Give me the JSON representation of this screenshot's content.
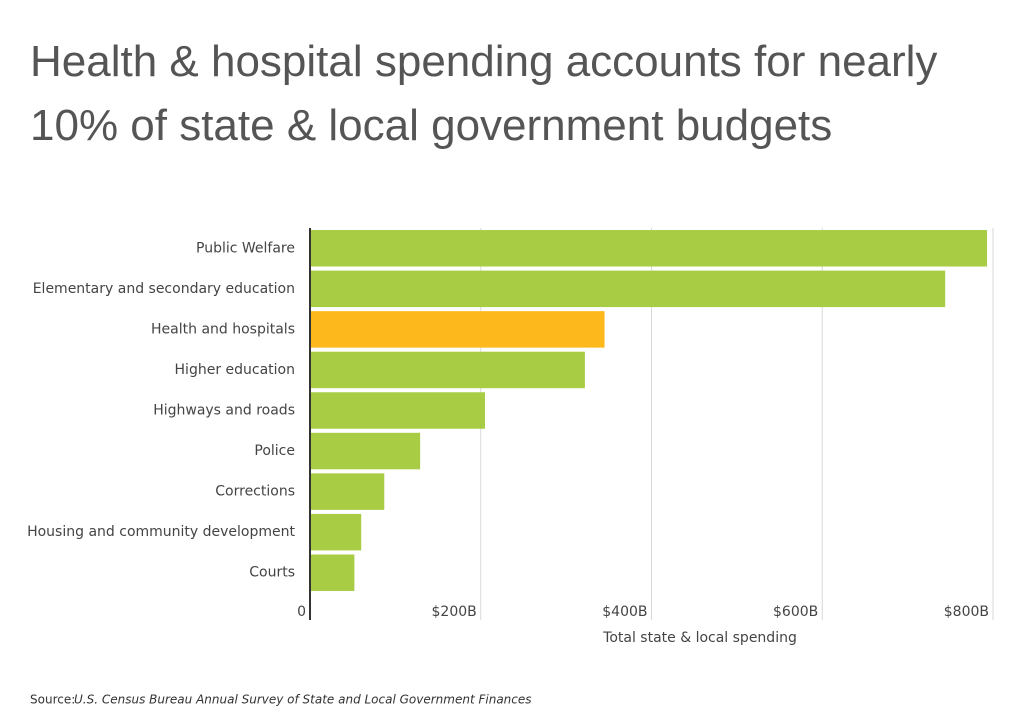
{
  "chart_data": {
    "type": "barh",
    "title": "Health & hospital spending accounts for nearly 10% of state & local government budgets",
    "categories": [
      "Public Welfare",
      "Elementary and secondary education",
      "Health and hospitals",
      "Higher education",
      "Highways and roads",
      "Police",
      "Corrections",
      "Housing and community development",
      "Courts"
    ],
    "values": [
      793,
      744,
      345,
      322,
      205,
      129,
      87,
      60,
      52
    ],
    "colors": [
      "#a8cd44",
      "#a8cd44",
      "#fdb91c",
      "#a8cd44",
      "#a8cd44",
      "#a8cd44",
      "#a8cd44",
      "#a8cd44",
      "#a8cd44"
    ],
    "xlim": [
      0,
      800
    ],
    "xticks": [
      0,
      {
        "value": 200,
        "label": "$200B"
      },
      {
        "value": 400,
        "label": "$400B"
      },
      {
        "value": 600,
        "label": "$600B"
      },
      {
        "value": 800,
        "label": "$800B"
      }
    ],
    "xlabel": "Total state & local spending",
    "grid": true,
    "source_label": "Source:",
    "source": "U.S. Census Bureau Annual Survey of State and Local Government Finances"
  }
}
